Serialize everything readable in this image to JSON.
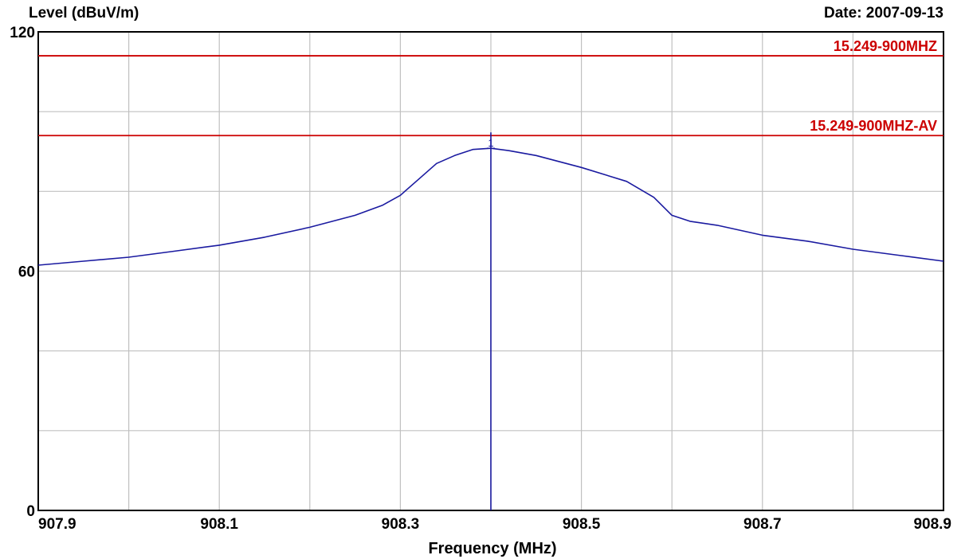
{
  "chart_data": {
    "type": "line",
    "ylabel": "Level (dBuV/m)",
    "xlabel": "Frequency (MHz)",
    "date_text": "Date: 2007-09-13",
    "xlim": [
      907.9,
      908.9
    ],
    "ylim": [
      0,
      120
    ],
    "x_ticks": [
      {
        "value": 907.9,
        "label": "907.9"
      },
      {
        "value": 908.1,
        "label": "908.1"
      },
      {
        "value": 908.3,
        "label": "908.3"
      },
      {
        "value": 908.5,
        "label": "908.5"
      },
      {
        "value": 908.7,
        "label": "908.7"
      },
      {
        "value": 908.9,
        "label": "908.9"
      }
    ],
    "y_ticks": [
      {
        "value": 0,
        "label": "0"
      },
      {
        "value": 60,
        "label": "60"
      },
      {
        "value": 120,
        "label": "120"
      }
    ],
    "grid": true,
    "grid_x_step": 0.1,
    "grid_y_step": 20,
    "limit_lines": [
      {
        "label": "15.249-900MHZ",
        "value": 114,
        "color": "#cc0000"
      },
      {
        "label": "15.249-900MHZ-AV",
        "value": 94,
        "color": "#cc0000"
      }
    ],
    "series": [
      {
        "color": "#1a1aa0",
        "x": [
          907.9,
          907.95,
          908.0,
          908.05,
          908.1,
          908.15,
          908.2,
          908.25,
          908.28,
          908.3,
          908.32,
          908.34,
          908.36,
          908.38,
          908.4,
          908.42,
          908.45,
          908.5,
          908.55,
          908.58,
          908.6,
          908.62,
          908.65,
          908.7,
          908.75,
          908.8,
          908.85,
          908.9
        ],
        "y": [
          61.5,
          62.5,
          63.5,
          65,
          66.5,
          68.5,
          71,
          74,
          76.5,
          79,
          83,
          87,
          89,
          90.5,
          90.8,
          90.2,
          89,
          86,
          82.5,
          78.5,
          74,
          72.5,
          71.5,
          69,
          67.5,
          65.5,
          64,
          62.5
        ]
      }
    ],
    "markers": [
      {
        "x": 908.4,
        "y": 90.8,
        "label": "1",
        "color": "#1a1aa0"
      }
    ]
  }
}
